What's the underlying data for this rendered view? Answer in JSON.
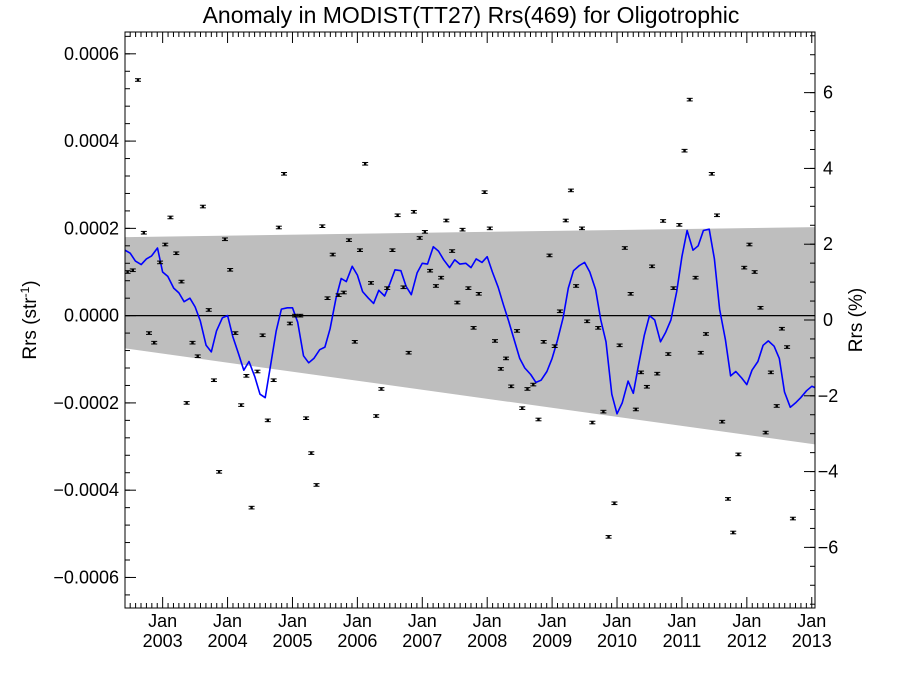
{
  "chart_data": {
    "type": "scatter",
    "title": "Anomaly in MODIST(TT27) Rrs(469) for Oligotrophic",
    "ylabel": "Rrs (str⁻¹)",
    "ylabel_right": "Rrs (%)",
    "xlim": [
      2002.42,
      2013.05
    ],
    "ylim": [
      -0.00067,
      0.00065
    ],
    "ylim_right": [
      -7.6,
      7.6
    ],
    "x_ticks": [
      {
        "x": 2003.0,
        "month": "Jan",
        "year": "2003"
      },
      {
        "x": 2004.0,
        "month": "Jan",
        "year": "2004"
      },
      {
        "x": 2005.0,
        "month": "Jan",
        "year": "2005"
      },
      {
        "x": 2006.0,
        "month": "Jan",
        "year": "2006"
      },
      {
        "x": 2007.0,
        "month": "Jan",
        "year": "2007"
      },
      {
        "x": 2008.0,
        "month": "Jan",
        "year": "2008"
      },
      {
        "x": 2009.0,
        "month": "Jan",
        "year": "2009"
      },
      {
        "x": 2010.0,
        "month": "Jan",
        "year": "2010"
      },
      {
        "x": 2011.0,
        "month": "Jan",
        "year": "2011"
      },
      {
        "x": 2012.0,
        "month": "Jan",
        "year": "2012"
      },
      {
        "x": 2013.0,
        "month": "Jan",
        "year": "2013"
      }
    ],
    "y_ticks": [
      {
        "value": 0.0006,
        "label": "0.0006"
      },
      {
        "value": 0.0004,
        "label": "0.0004"
      },
      {
        "value": 0.0002,
        "label": "0.0002"
      },
      {
        "value": 0.0,
        "label": "0.0000"
      },
      {
        "value": -0.0002,
        "label": "−0.0002"
      },
      {
        "value": -0.0004,
        "label": "−0.0004"
      },
      {
        "value": -0.0006,
        "label": "−0.0006"
      }
    ],
    "y_ticks_right": [
      {
        "value": 6,
        "label": "6"
      },
      {
        "value": 4,
        "label": "4"
      },
      {
        "value": 2,
        "label": "2"
      },
      {
        "value": 0,
        "label": "0"
      },
      {
        "value": -2,
        "label": "−2"
      },
      {
        "value": -4,
        "label": "−4"
      },
      {
        "value": -6,
        "label": "−6"
      }
    ],
    "band": {
      "color": "#bebebe",
      "upper": [
        {
          "x": 2002.42,
          "y": 0.00018
        },
        {
          "x": 2013.05,
          "y": 0.000203
        }
      ],
      "lower": [
        {
          "x": 2002.42,
          "y": -7.5e-05
        },
        {
          "x": 2013.05,
          "y": -0.000295
        }
      ]
    },
    "zero_line": true,
    "series": [
      {
        "type": "scatter",
        "color": "#000000",
        "error_bar": 3e-06,
        "points": [
          [
            2002.46,
            0.0001
          ],
          [
            2002.54,
            0.000104
          ],
          [
            2002.62,
            0.00054
          ],
          [
            2002.71,
            0.00019
          ],
          [
            2002.79,
            -4e-05
          ],
          [
            2002.87,
            -6.2e-05
          ],
          [
            2002.96,
            0.000122
          ],
          [
            2003.04,
            0.000163
          ],
          [
            2003.12,
            0.000225
          ],
          [
            2003.21,
            0.000143
          ],
          [
            2003.29,
            7.8e-05
          ],
          [
            2003.37,
            -0.0002
          ],
          [
            2003.46,
            -6.2e-05
          ],
          [
            2003.54,
            -9.3e-05
          ],
          [
            2003.62,
            0.00025
          ],
          [
            2003.71,
            1.3e-05
          ],
          [
            2003.79,
            -0.000148
          ],
          [
            2003.87,
            -0.000358
          ],
          [
            2003.96,
            0.000175
          ],
          [
            2004.04,
            0.000105
          ],
          [
            2004.12,
            -4e-05
          ],
          [
            2004.21,
            -0.000205
          ],
          [
            2004.29,
            -0.000138
          ],
          [
            2004.37,
            -0.00044
          ],
          [
            2004.46,
            -0.000128
          ],
          [
            2004.54,
            -4.5e-05
          ],
          [
            2004.62,
            -0.00024
          ],
          [
            2004.71,
            -0.000148
          ],
          [
            2004.79,
            0.000202
          ],
          [
            2004.87,
            0.000325
          ],
          [
            2004.96,
            -1.8e-05
          ],
          [
            2005.04,
            0.0
          ],
          [
            2005.12,
            0.0
          ],
          [
            2005.21,
            -0.000235
          ],
          [
            2005.29,
            -0.000315
          ],
          [
            2005.37,
            -0.000388
          ],
          [
            2005.46,
            0.000205
          ],
          [
            2005.54,
            4e-05
          ],
          [
            2005.62,
            0.00014
          ],
          [
            2005.71,
            4.7e-05
          ],
          [
            2005.79,
            5.3e-05
          ],
          [
            2005.87,
            0.000173
          ],
          [
            2005.96,
            -6e-05
          ],
          [
            2006.04,
            0.00015
          ],
          [
            2006.12,
            0.000348
          ],
          [
            2006.21,
            7.5e-05
          ],
          [
            2006.29,
            -0.00023
          ],
          [
            2006.37,
            -0.000168
          ],
          [
            2006.46,
            6.3e-05
          ],
          [
            2006.54,
            0.00015
          ],
          [
            2006.62,
            0.00023
          ],
          [
            2006.71,
            6.5e-05
          ],
          [
            2006.79,
            -8.5e-05
          ],
          [
            2006.87,
            0.000238
          ],
          [
            2006.96,
            0.000178
          ],
          [
            2007.04,
            0.000192
          ],
          [
            2007.12,
            0.000103
          ],
          [
            2007.21,
            6.8e-05
          ],
          [
            2007.29,
            8.7e-05
          ],
          [
            2007.37,
            0.000218
          ],
          [
            2007.46,
            0.000148
          ],
          [
            2007.54,
            3e-05
          ],
          [
            2007.62,
            0.000197
          ],
          [
            2007.71,
            6.3e-05
          ],
          [
            2007.79,
            -2.8e-05
          ],
          [
            2007.87,
            5e-05
          ],
          [
            2007.96,
            0.000283
          ],
          [
            2008.04,
            0.0002
          ],
          [
            2008.12,
            -5.8e-05
          ],
          [
            2008.21,
            -0.000122
          ],
          [
            2008.29,
            -9.8e-05
          ],
          [
            2008.37,
            -0.000162
          ],
          [
            2008.46,
            -3.5e-05
          ],
          [
            2008.54,
            -0.000212
          ],
          [
            2008.62,
            -0.000168
          ],
          [
            2008.71,
            -0.000158
          ],
          [
            2008.79,
            -0.000238
          ],
          [
            2008.87,
            -6e-05
          ],
          [
            2008.96,
            0.000138
          ],
          [
            2009.04,
            -7e-05
          ],
          [
            2009.12,
            1e-05
          ],
          [
            2009.21,
            0.000218
          ],
          [
            2009.29,
            0.000287
          ],
          [
            2009.37,
            6.8e-05
          ],
          [
            2009.46,
            0.0002
          ],
          [
            2009.54,
            -1.3e-05
          ],
          [
            2009.62,
            -0.000245
          ],
          [
            2009.71,
            -2.8e-05
          ],
          [
            2009.79,
            -0.00022
          ],
          [
            2009.87,
            -0.000507
          ],
          [
            2009.96,
            -0.00043
          ],
          [
            2010.04,
            -6.8e-05
          ],
          [
            2010.12,
            0.000155
          ],
          [
            2010.21,
            5e-05
          ],
          [
            2010.29,
            -0.000215
          ],
          [
            2010.37,
            -0.00013
          ],
          [
            2010.46,
            -0.000163
          ],
          [
            2010.54,
            0.000113
          ],
          [
            2010.62,
            -0.000133
          ],
          [
            2010.71,
            0.000217
          ],
          [
            2010.79,
            -8.8e-05
          ],
          [
            2010.87,
            6.3e-05
          ],
          [
            2010.96,
            0.000208
          ],
          [
            2011.04,
            0.000378
          ],
          [
            2011.12,
            0.000495
          ],
          [
            2011.21,
            8.7e-05
          ],
          [
            2011.29,
            -8.5e-05
          ],
          [
            2011.37,
            -4.2e-05
          ],
          [
            2011.46,
            0.000325
          ],
          [
            2011.54,
            0.00023
          ],
          [
            2011.62,
            -0.000243
          ],
          [
            2011.71,
            -0.00042
          ],
          [
            2011.79,
            -0.000497
          ],
          [
            2011.87,
            -0.000318
          ],
          [
            2011.96,
            0.00011
          ],
          [
            2012.04,
            0.000163
          ],
          [
            2012.12,
            0.0001
          ],
          [
            2012.21,
            1.8e-05
          ],
          [
            2012.29,
            -0.000268
          ],
          [
            2012.37,
            -0.00013
          ],
          [
            2012.46,
            -0.000207
          ],
          [
            2012.54,
            -3e-05
          ],
          [
            2012.62,
            -7.2e-05
          ],
          [
            2012.71,
            -0.000465
          ]
        ]
      },
      {
        "type": "line",
        "color": "#0000ff",
        "points": [
          [
            2002.42,
            0.00015
          ],
          [
            2002.5,
            0.000143
          ],
          [
            2002.58,
            0.000125
          ],
          [
            2002.67,
            0.000117
          ],
          [
            2002.75,
            0.00013
          ],
          [
            2002.83,
            0.000137
          ],
          [
            2002.92,
            0.000155
          ],
          [
            2003.0,
            0.0001
          ],
          [
            2003.08,
            9e-05
          ],
          [
            2003.17,
            6.3e-05
          ],
          [
            2003.25,
            5.2e-05
          ],
          [
            2003.33,
            3.2e-05
          ],
          [
            2003.42,
            4e-05
          ],
          [
            2003.5,
            2e-05
          ],
          [
            2003.58,
            -1.2e-05
          ],
          [
            2003.67,
            -6.8e-05
          ],
          [
            2003.75,
            -8.3e-05
          ],
          [
            2003.83,
            -3.5e-05
          ],
          [
            2003.92,
            -5e-06
          ],
          [
            2004.0,
            0.0
          ],
          [
            2004.08,
            -4.8e-05
          ],
          [
            2004.17,
            -8.8e-05
          ],
          [
            2004.25,
            -0.000125
          ],
          [
            2004.33,
            -0.000105
          ],
          [
            2004.42,
            -0.00014
          ],
          [
            2004.5,
            -0.00018
          ],
          [
            2004.58,
            -0.000188
          ],
          [
            2004.67,
            -0.000108
          ],
          [
            2004.75,
            -3.5e-05
          ],
          [
            2004.83,
            1.5e-05
          ],
          [
            2004.92,
            1.8e-05
          ],
          [
            2005.0,
            1.8e-05
          ],
          [
            2005.08,
            -1.5e-05
          ],
          [
            2005.17,
            -9.2e-05
          ],
          [
            2005.25,
            -0.000108
          ],
          [
            2005.33,
            -9.8e-05
          ],
          [
            2005.42,
            -7.8e-05
          ],
          [
            2005.5,
            -7.2e-05
          ],
          [
            2005.58,
            -3e-05
          ],
          [
            2005.67,
            4e-05
          ],
          [
            2005.75,
            8.5e-05
          ],
          [
            2005.83,
            7.8e-05
          ],
          [
            2005.92,
            0.000113
          ],
          [
            2006.0,
            9.3e-05
          ],
          [
            2006.08,
            5.5e-05
          ],
          [
            2006.17,
            4e-05
          ],
          [
            2006.25,
            2.8e-05
          ],
          [
            2006.33,
            5.8e-05
          ],
          [
            2006.42,
            4.5e-05
          ],
          [
            2006.5,
            7.3e-05
          ],
          [
            2006.58,
            0.000105
          ],
          [
            2006.67,
            0.000103
          ],
          [
            2006.75,
            6.7e-05
          ],
          [
            2006.83,
            4.8e-05
          ],
          [
            2006.92,
            9.8e-05
          ],
          [
            2007.0,
            0.00012
          ],
          [
            2007.08,
            0.000118
          ],
          [
            2007.17,
            0.000158
          ],
          [
            2007.25,
            0.000148
          ],
          [
            2007.33,
            0.000128
          ],
          [
            2007.42,
            0.00011
          ],
          [
            2007.5,
            0.000128
          ],
          [
            2007.58,
            0.000118
          ],
          [
            2007.67,
            0.00012
          ],
          [
            2007.75,
            0.00011
          ],
          [
            2007.83,
            0.00013
          ],
          [
            2007.92,
            0.000122
          ],
          [
            2008.0,
            0.000135
          ],
          [
            2008.08,
            0.0001
          ],
          [
            2008.17,
            6.5e-05
          ],
          [
            2008.25,
            2.5e-05
          ],
          [
            2008.33,
            -1.2e-05
          ],
          [
            2008.42,
            -5.8e-05
          ],
          [
            2008.5,
            -9.8e-05
          ],
          [
            2008.58,
            -0.00012
          ],
          [
            2008.67,
            -0.000135
          ],
          [
            2008.75,
            -0.000153
          ],
          [
            2008.83,
            -0.000148
          ],
          [
            2008.92,
            -0.000128
          ],
          [
            2009.0,
            -9.8e-05
          ],
          [
            2009.08,
            -5.8e-05
          ],
          [
            2009.17,
            -5e-06
          ],
          [
            2009.25,
            6.3e-05
          ],
          [
            2009.33,
            0.000103
          ],
          [
            2009.42,
            0.000115
          ],
          [
            2009.5,
            0.000122
          ],
          [
            2009.58,
            0.0001
          ],
          [
            2009.67,
            6e-05
          ],
          [
            2009.75,
            -1e-05
          ],
          [
            2009.83,
            -6e-05
          ],
          [
            2009.92,
            -0.00018
          ],
          [
            2010.0,
            -0.000225
          ],
          [
            2010.08,
            -0.0002
          ],
          [
            2010.17,
            -0.00015
          ],
          [
            2010.25,
            -0.000178
          ],
          [
            2010.33,
            -0.000115
          ],
          [
            2010.42,
            -4.5e-05
          ],
          [
            2010.5,
            0.0
          ],
          [
            2010.58,
            -1e-05
          ],
          [
            2010.67,
            -6e-05
          ],
          [
            2010.75,
            -3.8e-05
          ],
          [
            2010.83,
            -1e-05
          ],
          [
            2010.92,
            5.5e-05
          ],
          [
            2011.0,
            0.000135
          ],
          [
            2011.08,
            0.000195
          ],
          [
            2011.17,
            0.00015
          ],
          [
            2011.25,
            0.00016
          ],
          [
            2011.33,
            0.000195
          ],
          [
            2011.42,
            0.000198
          ],
          [
            2011.5,
            0.00013
          ],
          [
            2011.58,
            1.5e-05
          ],
          [
            2011.67,
            -5.5e-05
          ],
          [
            2011.75,
            -0.000138
          ],
          [
            2011.83,
            -0.000128
          ],
          [
            2011.92,
            -0.000143
          ],
          [
            2012.0,
            -0.000158
          ],
          [
            2012.08,
            -0.000125
          ],
          [
            2012.17,
            -0.000105
          ],
          [
            2012.25,
            -6.8e-05
          ],
          [
            2012.33,
            -5.8e-05
          ],
          [
            2012.42,
            -7e-05
          ],
          [
            2012.5,
            -9.8e-05
          ],
          [
            2012.58,
            -0.000175
          ],
          [
            2012.67,
            -0.00021
          ],
          [
            2012.75,
            -0.0002
          ],
          [
            2012.83,
            -0.000188
          ],
          [
            2012.92,
            -0.000172
          ],
          [
            2013.0,
            -0.000162
          ],
          [
            2013.05,
            -0.000165
          ]
        ]
      }
    ]
  }
}
